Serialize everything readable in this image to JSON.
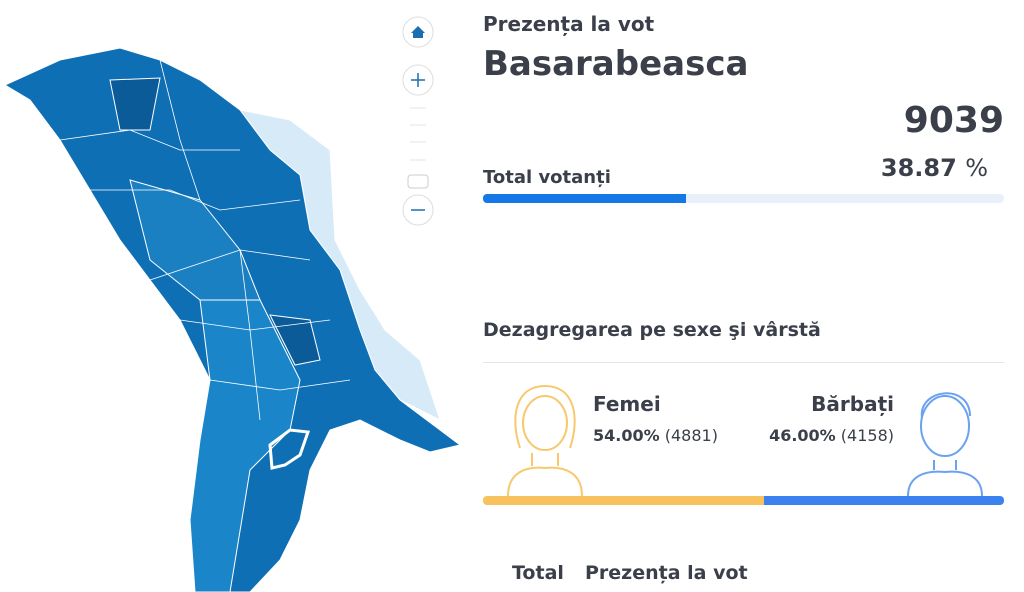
{
  "header": {
    "title": "Prezența la vot",
    "district": "Basarabeasca"
  },
  "turnout": {
    "value": 9039,
    "percent": 38.87,
    "unit": "%",
    "label": "Total votanți"
  },
  "gender": {
    "title": "Dezagregarea pe sexe şi vârstă",
    "women": {
      "label": "Femei",
      "percent": 54.0,
      "percent_label": "54.00%",
      "count": "(4881)"
    },
    "men": {
      "label": "Bărbați",
      "percent": 46.0,
      "percent_label": "46.00%",
      "count": "(4158)"
    }
  },
  "table_header": [
    "Total",
    "Prezența la vot"
  ]
}
